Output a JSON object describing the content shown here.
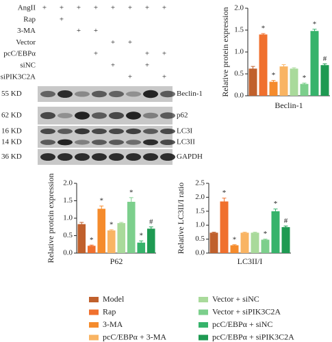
{
  "blot": {
    "treatments": [
      {
        "label": "AngII",
        "marks": [
          "+",
          "+",
          "+",
          "+",
          "+",
          "+",
          "+",
          "+"
        ]
      },
      {
        "label": "Rap",
        "marks": [
          null,
          "+",
          null,
          null,
          null,
          null,
          null,
          null
        ]
      },
      {
        "label": "3-MA",
        "marks": [
          null,
          null,
          "+",
          "+",
          null,
          null,
          null,
          null
        ]
      },
      {
        "label": "Vector",
        "marks": [
          null,
          null,
          null,
          null,
          "+",
          "+",
          null,
          null
        ]
      },
      {
        "label": "pcC/EBPα",
        "marks": [
          null,
          null,
          null,
          "+",
          null,
          null,
          "+",
          "+"
        ]
      },
      {
        "label": "siNC",
        "marks": [
          null,
          null,
          null,
          null,
          "+",
          null,
          "+",
          null
        ]
      },
      {
        "label": "siPIK3C2A",
        "marks": [
          null,
          null,
          null,
          null,
          null,
          "+",
          null,
          "+"
        ]
      }
    ],
    "bands": [
      {
        "sizes": [
          "55 KD"
        ],
        "proteins": [
          "Beclin-1"
        ]
      },
      {
        "sizes": [
          "62 KD"
        ],
        "proteins": [
          "p62"
        ]
      },
      {
        "sizes": [
          "16 KD",
          "14 KD"
        ],
        "proteins": [
          "LC3I",
          "LC3II"
        ]
      },
      {
        "sizes": [
          "36 KD"
        ],
        "proteins": [
          "GAPDH"
        ]
      }
    ]
  },
  "chart_data": [
    {
      "type": "bar",
      "ylabel": "Relative protein expression",
      "xlabel": "Beclin-1",
      "categories": [
        null,
        null,
        null,
        null,
        null,
        null,
        null,
        null
      ],
      "values": [
        0.62,
        1.4,
        0.32,
        0.67,
        0.62,
        0.27,
        1.48,
        0.7
      ],
      "errors": [
        0.05,
        0.02,
        0.03,
        0.04,
        0.02,
        0.02,
        0.04,
        0.03
      ],
      "annotations": [
        null,
        "*",
        "*",
        null,
        null,
        "*",
        "*",
        "#"
      ],
      "ylim": [
        0,
        2
      ],
      "yticks": [
        {
          "value": 0,
          "label": "0.0"
        },
        {
          "value": 0.5,
          "label": "0.5"
        },
        {
          "value": 1,
          "label": "1.0"
        },
        {
          "value": 1.5,
          "label": "1.5"
        },
        {
          "value": 2,
          "label": "2.0"
        }
      ]
    },
    {
      "type": "bar",
      "ylabel": "Relative protein expression",
      "xlabel": "P62",
      "categories": [
        null,
        null,
        null,
        null,
        null,
        null,
        null,
        null
      ],
      "values": [
        0.83,
        0.21,
        1.27,
        0.65,
        0.86,
        1.47,
        0.3,
        0.7
      ],
      "errors": [
        0.05,
        0.02,
        0.08,
        0.02,
        0.02,
        0.12,
        0.05,
        0.05
      ],
      "annotations": [
        null,
        "*",
        "*",
        "*",
        null,
        "*",
        "*",
        "#"
      ],
      "ylim": [
        0,
        2
      ],
      "yticks": [
        {
          "value": 0,
          "label": "0.0"
        },
        {
          "value": 0.5,
          "label": "0.5"
        },
        {
          "value": 1,
          "label": "1.0"
        },
        {
          "value": 1.5,
          "label": "1.5"
        },
        {
          "value": 2,
          "label": "2.0"
        }
      ]
    },
    {
      "type": "bar",
      "ylabel": "Relative LC3II/I ratio",
      "xlabel": "LC3II/I",
      "categories": [
        null,
        null,
        null,
        null,
        null,
        null,
        null,
        null
      ],
      "values": [
        0.73,
        1.85,
        0.28,
        0.73,
        0.73,
        0.48,
        1.5,
        0.93
      ],
      "errors": [
        0.02,
        0.12,
        0.02,
        0.02,
        0.02,
        0.02,
        0.08,
        0.04
      ],
      "annotations": [
        null,
        "*",
        "*",
        null,
        null,
        "*",
        "*",
        "#"
      ],
      "ylim": [
        0,
        2.5
      ],
      "yticks": [
        {
          "value": 0,
          "label": "0.0"
        },
        {
          "value": 0.5,
          "label": "0.5"
        },
        {
          "value": 1,
          "label": "1.0"
        },
        {
          "value": 1.5,
          "label": "1.5"
        },
        {
          "value": 2,
          "label": "2.0"
        },
        {
          "value": 2.5,
          "label": "2.5"
        }
      ]
    }
  ],
  "legend": {
    "items": [
      {
        "name": "Model",
        "color": "#c0602c"
      },
      {
        "name": "Rap",
        "color": "#f0702e"
      },
      {
        "name": "3-MA",
        "color": "#f58b2c"
      },
      {
        "name": "pcC/EBPα + 3-MA",
        "color": "#f9b463"
      },
      {
        "name": "Vector + siNC",
        "color": "#a9da9b"
      },
      {
        "name": "Vector + siPIK3C2A",
        "color": "#7ccf8c"
      },
      {
        "name": "pcC/EBPα + siNC",
        "color": "#36b36b"
      },
      {
        "name": "pcC/EBPα + siPIK3C2A",
        "color": "#1e9a52"
      }
    ]
  }
}
